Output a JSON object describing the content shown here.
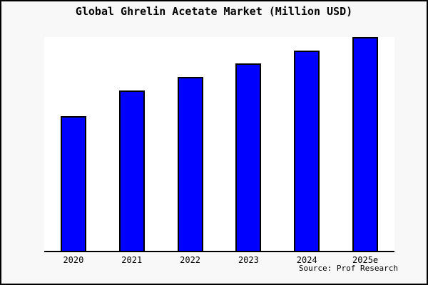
{
  "figure": {
    "background_color": "#f8f8f8",
    "plot_background_color": "#ffffff",
    "frame_color": "#000000",
    "source": "Source: Prof Research"
  },
  "chart_data": {
    "type": "bar",
    "title": "Global Ghrelin Acetate Market (Million USD)",
    "categories": [
      "2020",
      "2021",
      "2022",
      "2023",
      "2024",
      "2025e"
    ],
    "values": [
      62.9,
      75.0,
      81.3,
      87.7,
      93.7,
      100
    ],
    "xlabel": "",
    "ylabel": "",
    "ylim": [
      0,
      100
    ],
    "grid": false,
    "y_axis_visible": false,
    "legend_position": "none",
    "bar_color": "#0000ff",
    "bar_edge_color": "#000000",
    "note": "No y-axis scale is shown in the image; values are relative bar heights normalized to 2025e = 100."
  }
}
